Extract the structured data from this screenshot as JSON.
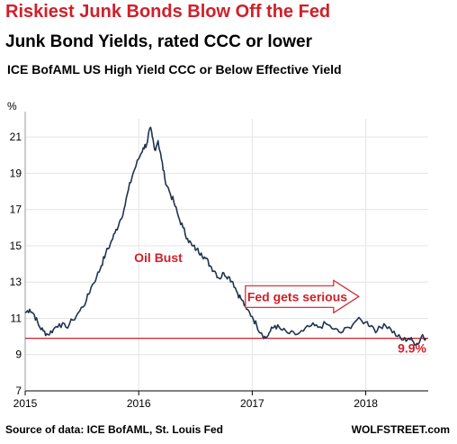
{
  "title": "Riskiest Junk Bonds Blow Off the Fed",
  "subtitle": "Junk Bond Yields, rated CCC or lower",
  "series_label": "ICE BofAML US High Yield CCC or Below Effective Yield",
  "source": "Source of data: ICE BofAML, St. Louis Fed",
  "brand": "WOLFSTREET.com",
  "colors": {
    "title": "#d0202a",
    "line": "#1f3350",
    "annotation": "#d0202a",
    "grid": "#e4e4e4"
  },
  "chart_data": {
    "type": "line",
    "ylabel": "%",
    "xlim": [
      2015.0,
      2018.55
    ],
    "ylim": [
      7,
      22
    ],
    "yticks": [
      7,
      9,
      11,
      13,
      15,
      17,
      19,
      21
    ],
    "xticks": [
      2015,
      2016,
      2017,
      2018
    ],
    "grid": true,
    "series": [
      {
        "points": [
          [
            2015.0,
            11.3
          ],
          [
            2015.04,
            11.5
          ],
          [
            2015.08,
            11.2
          ],
          [
            2015.12,
            10.6
          ],
          [
            2015.16,
            10.3
          ],
          [
            2015.2,
            10.1
          ],
          [
            2015.25,
            10.4
          ],
          [
            2015.3,
            10.7
          ],
          [
            2015.36,
            10.5
          ],
          [
            2015.42,
            10.9
          ],
          [
            2015.48,
            11.4
          ],
          [
            2015.54,
            12.0
          ],
          [
            2015.58,
            12.7
          ],
          [
            2015.63,
            13.3
          ],
          [
            2015.67,
            13.9
          ],
          [
            2015.71,
            14.6
          ],
          [
            2015.75,
            15.1
          ],
          [
            2015.79,
            15.7
          ],
          [
            2015.83,
            16.3
          ],
          [
            2015.87,
            17.0
          ],
          [
            2015.91,
            18.1
          ],
          [
            2015.95,
            19.0
          ],
          [
            2016.0,
            19.8
          ],
          [
            2016.04,
            20.4
          ],
          [
            2016.07,
            20.6
          ],
          [
            2016.1,
            21.5
          ],
          [
            2016.12,
            21.0
          ],
          [
            2016.14,
            20.3
          ],
          [
            2016.17,
            20.8
          ],
          [
            2016.2,
            19.8
          ],
          [
            2016.23,
            18.7
          ],
          [
            2016.27,
            18.0
          ],
          [
            2016.31,
            17.4
          ],
          [
            2016.35,
            16.6
          ],
          [
            2016.39,
            16.0
          ],
          [
            2016.43,
            15.4
          ],
          [
            2016.47,
            15.0
          ],
          [
            2016.51,
            14.8
          ],
          [
            2016.55,
            14.6
          ],
          [
            2016.59,
            14.3
          ],
          [
            2016.63,
            13.9
          ],
          [
            2016.67,
            13.6
          ],
          [
            2016.71,
            13.2
          ],
          [
            2016.75,
            13.5
          ],
          [
            2016.79,
            13.3
          ],
          [
            2016.83,
            13.0
          ],
          [
            2016.87,
            12.4
          ],
          [
            2016.91,
            12.0
          ],
          [
            2016.95,
            11.5
          ],
          [
            2017.0,
            11.1
          ],
          [
            2017.04,
            10.6
          ],
          [
            2017.08,
            10.2
          ],
          [
            2017.12,
            9.9
          ],
          [
            2017.16,
            10.3
          ],
          [
            2017.2,
            10.6
          ],
          [
            2017.25,
            10.4
          ],
          [
            2017.31,
            10.2
          ],
          [
            2017.38,
            10.1
          ],
          [
            2017.45,
            10.3
          ],
          [
            2017.52,
            10.6
          ],
          [
            2017.58,
            10.5
          ],
          [
            2017.65,
            10.7
          ],
          [
            2017.72,
            10.4
          ],
          [
            2017.78,
            10.2
          ],
          [
            2017.85,
            10.5
          ],
          [
            2017.92,
            10.9
          ],
          [
            2018.0,
            10.8
          ],
          [
            2018.05,
            10.6
          ],
          [
            2018.1,
            10.3
          ],
          [
            2018.16,
            10.7
          ],
          [
            2018.22,
            10.4
          ],
          [
            2018.28,
            10.0
          ],
          [
            2018.33,
            9.8
          ],
          [
            2018.38,
            9.9
          ],
          [
            2018.42,
            9.7
          ],
          [
            2018.46,
            9.6
          ],
          [
            2018.5,
            10.1
          ],
          [
            2018.53,
            9.9
          ]
        ]
      }
    ],
    "reference_line": {
      "y": 9.9,
      "label": "9.9%"
    },
    "annotations": [
      {
        "text": "Oil Bust",
        "x": 2015.96,
        "y": 14.1
      },
      {
        "text": "Fed gets serious",
        "x": 2016.94,
        "y": 12.2,
        "arrow": true
      }
    ]
  }
}
